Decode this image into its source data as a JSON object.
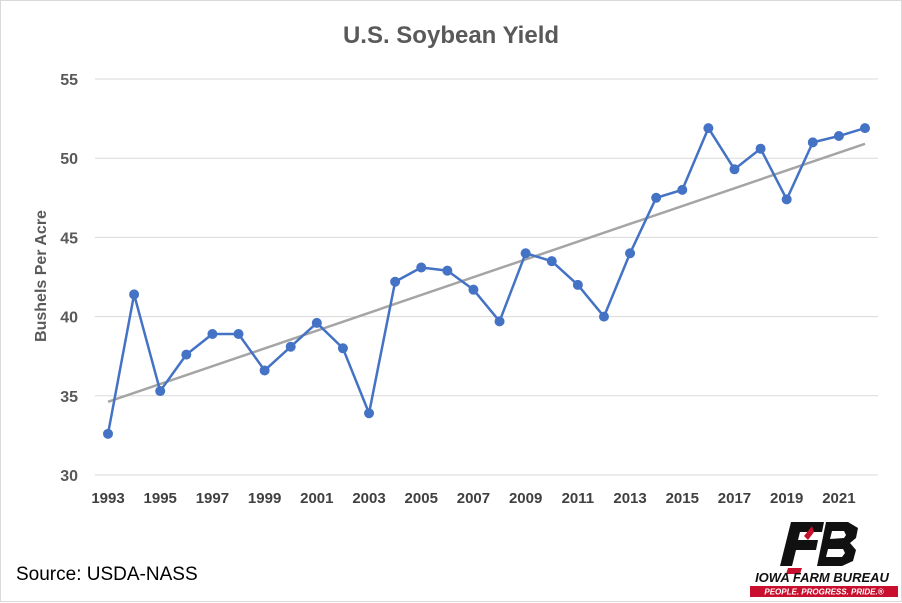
{
  "chart_data": {
    "type": "line",
    "title": "U.S. Soybean Yield",
    "xlabel": "",
    "ylabel": "Bushels Per Acre",
    "xlim": [
      1993,
      2022
    ],
    "ylim": [
      30,
      55
    ],
    "y_ticks": [
      30,
      35,
      40,
      45,
      50,
      55
    ],
    "x_tick_labels": [
      "1993",
      "1995",
      "1997",
      "1999",
      "2001",
      "2003",
      "2005",
      "2007",
      "2009",
      "2011",
      "2013",
      "2015",
      "2017",
      "2019",
      "2021"
    ],
    "grid": "horizontal",
    "legend": "none",
    "series": [
      {
        "color": "#4472c4",
        "x": [
          1993,
          1994,
          1995,
          1996,
          1997,
          1998,
          1999,
          2000,
          2001,
          2002,
          2003,
          2004,
          2005,
          2006,
          2007,
          2008,
          2009,
          2010,
          2011,
          2012,
          2013,
          2014,
          2015,
          2016,
          2017,
          2018,
          2019,
          2020,
          2021,
          2022
        ],
        "values": [
          32.6,
          41.4,
          35.3,
          37.6,
          38.9,
          38.9,
          36.6,
          38.1,
          39.6,
          38.0,
          33.9,
          42.2,
          43.1,
          42.9,
          41.7,
          39.7,
          44.0,
          43.5,
          42.0,
          40.0,
          44.0,
          47.5,
          48.0,
          51.9,
          49.3,
          50.6,
          47.4,
          51.0,
          51.4,
          51.9
        ],
        "marker": "circle"
      }
    ],
    "trendline": {
      "type": "linear",
      "color": "#a5a5a5"
    }
  },
  "source": "Source: USDA-NASS",
  "logo": {
    "text": "IOWA FARM BUREAU",
    "tagline": "PEOPLE. PROGRESS. PRIDE.®"
  }
}
